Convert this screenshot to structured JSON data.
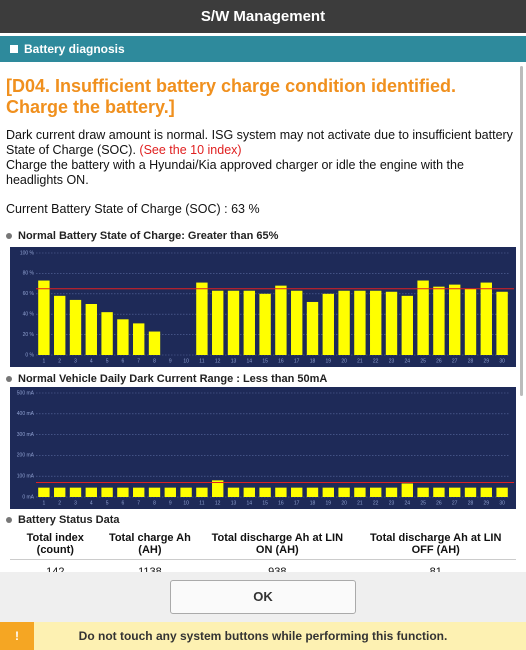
{
  "header": {
    "title": "S/W Management"
  },
  "section": {
    "title": "Battery diagnosis"
  },
  "message": {
    "headline": "[D04. Insufficient battery charge condition identified. Charge the battery.]",
    "text1": "Dark current draw amount is normal. ISG system may not activate due to insufficient battery State of Charge (SOC).",
    "note": "(See the 10 index)",
    "text2": "Charge the battery with a Hyundai/Kia approved charger or idle the engine with the headlights ON.",
    "soc": "Current Battery State of Charge (SOC) : 63 %"
  },
  "chart_data": [
    {
      "type": "bar",
      "title": "Normal Battery State of Charge: Greater than 65%",
      "categories": [
        "1",
        "2",
        "3",
        "4",
        "5",
        "6",
        "7",
        "8",
        "9",
        "10",
        "11",
        "12",
        "13",
        "14",
        "15",
        "16",
        "17",
        "18",
        "19",
        "20",
        "21",
        "22",
        "23",
        "24",
        "25",
        "26",
        "27",
        "28",
        "29",
        "30"
      ],
      "values": [
        73,
        58,
        54,
        50,
        42,
        35,
        31,
        23,
        0,
        0,
        71,
        63,
        63,
        63,
        60,
        68,
        63,
        52,
        60,
        63,
        63,
        63,
        62,
        58,
        73,
        67,
        69,
        65,
        71,
        62
      ],
      "color": "#ffff00",
      "threshold": 65,
      "threshold_color": "#e02020",
      "ylim": [
        0,
        100
      ],
      "yticks": [
        {
          "value": 0,
          "label": "0 %"
        },
        {
          "value": 20,
          "label": "20 %"
        },
        {
          "value": 40,
          "label": "40 %"
        },
        {
          "value": 60,
          "label": "60 %"
        },
        {
          "value": 80,
          "label": "80 %"
        },
        {
          "value": 100,
          "label": "100 %"
        }
      ],
      "grid": true
    },
    {
      "type": "bar",
      "title": "Normal Vehicle Daily Dark Current Range : Less than 50mA",
      "categories": [
        "1",
        "2",
        "3",
        "4",
        "5",
        "6",
        "7",
        "8",
        "9",
        "10",
        "11",
        "12",
        "13",
        "14",
        "15",
        "16",
        "17",
        "18",
        "19",
        "20",
        "21",
        "22",
        "23",
        "24",
        "25",
        "26",
        "27",
        "28",
        "29",
        "30"
      ],
      "values": [
        45,
        45,
        45,
        45,
        45,
        45,
        45,
        45,
        45,
        45,
        45,
        80,
        45,
        45,
        45,
        45,
        45,
        45,
        45,
        45,
        45,
        45,
        45,
        65,
        45,
        45,
        45,
        45,
        45,
        45
      ],
      "color": "#ffff00",
      "threshold": 70,
      "threshold_color": "#e02020",
      "ylim": [
        0,
        500
      ],
      "yticks": [
        {
          "value": 0,
          "label": "0 mA"
        },
        {
          "value": 100,
          "label": "100 mA"
        },
        {
          "value": 200,
          "label": "200 mA"
        },
        {
          "value": 300,
          "label": "300 mA"
        },
        {
          "value": 400,
          "label": "400 mA"
        },
        {
          "value": 500,
          "label": "500 mA"
        }
      ],
      "grid": true
    }
  ],
  "status": {
    "title": "Battery Status Data"
  },
  "table": {
    "headers": [
      "Total index (count)",
      "Total charge Ah (AH)",
      "Total discharge Ah at LIN ON (AH)",
      "Total discharge Ah at LIN OFF (AH)"
    ],
    "rows": [
      [
        "142",
        "1138",
        "938",
        "81"
      ]
    ]
  },
  "button": {
    "ok": "OK"
  },
  "footer": {
    "icon": "!",
    "warning": "Do not touch any system buttons while performing this function."
  }
}
